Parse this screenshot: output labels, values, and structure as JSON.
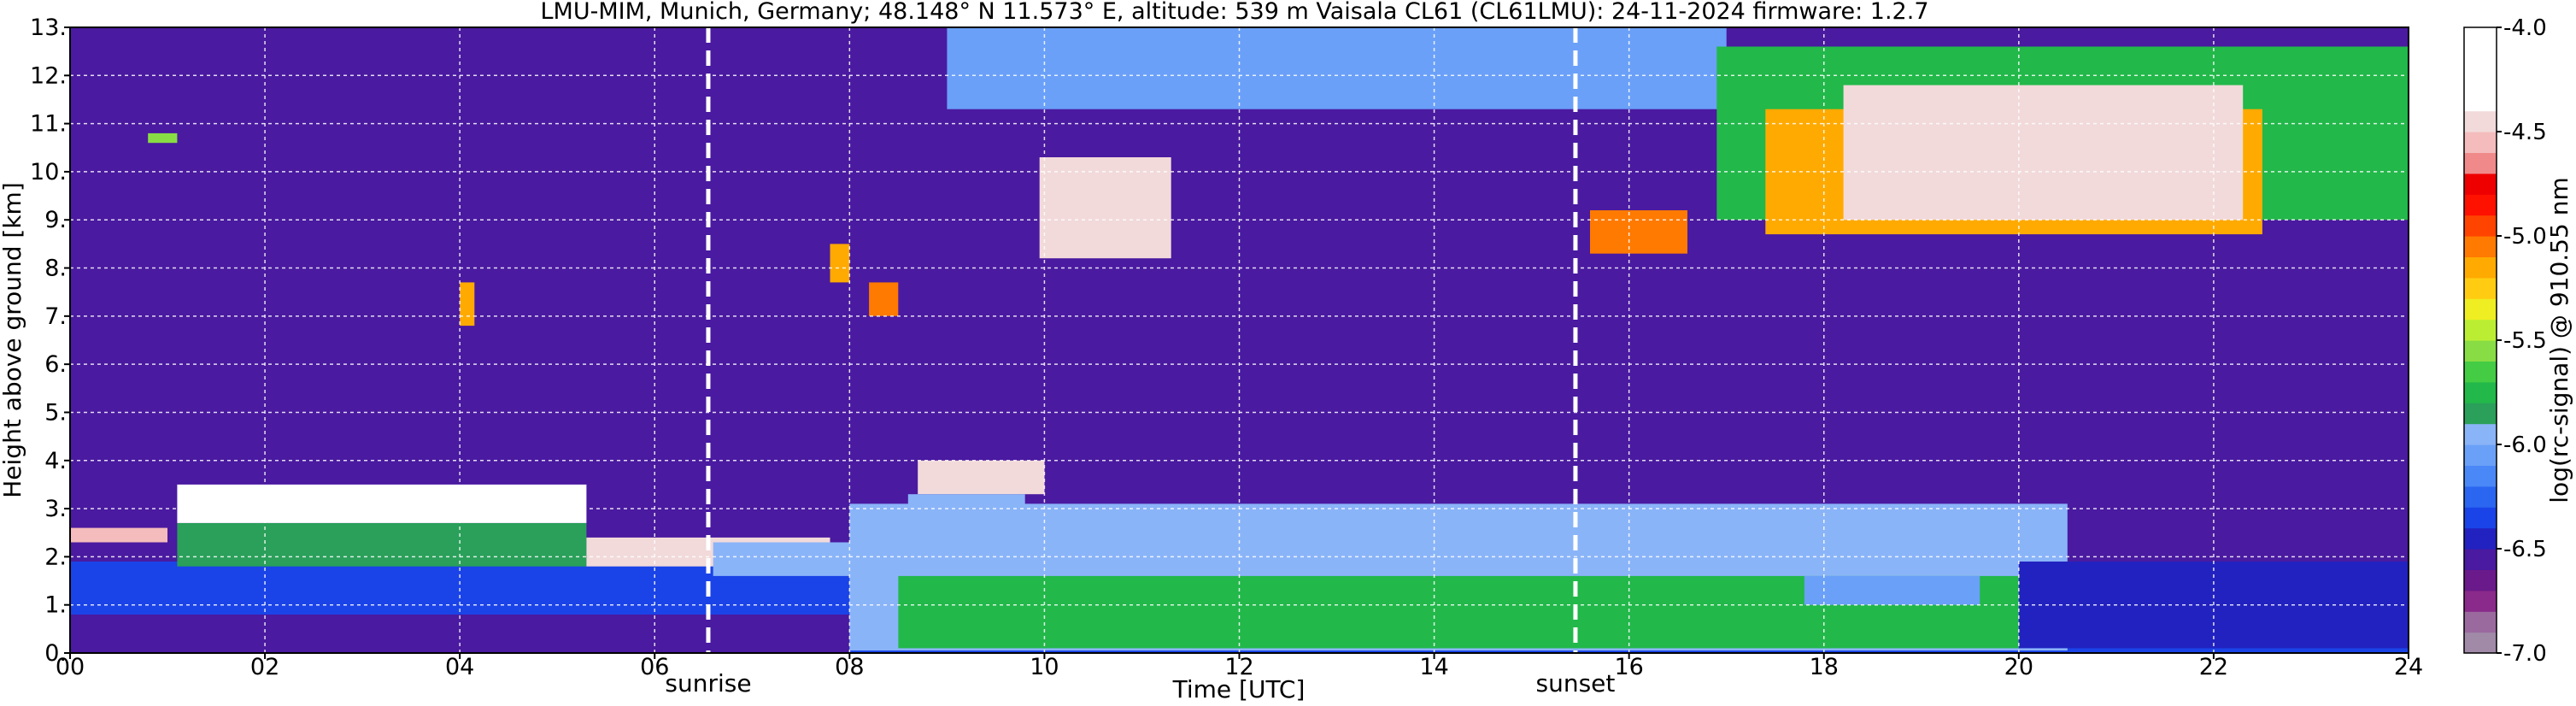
{
  "chart_data": {
    "type": "heatmap",
    "title": "LMU-MIM, Munich, Germany; 48.148° N 11.573° E, altitude: 539 m    Vaisala CL61 (CL61LMU): 24-11-2024    firmware: 1.2.7",
    "xlabel": "Time [UTC]",
    "ylabel": "Height above ground [km]",
    "xlim": [
      0,
      24
    ],
    "ylim": [
      0,
      13
    ],
    "xticks": [
      {
        "v": 0,
        "label": "00"
      },
      {
        "v": 2,
        "label": "02"
      },
      {
        "v": 4,
        "label": "04"
      },
      {
        "v": 6,
        "label": "06"
      },
      {
        "v": 8,
        "label": "08"
      },
      {
        "v": 10,
        "label": "10"
      },
      {
        "v": 12,
        "label": "12"
      },
      {
        "v": 14,
        "label": "14"
      },
      {
        "v": 16,
        "label": "16"
      },
      {
        "v": 18,
        "label": "18"
      },
      {
        "v": 20,
        "label": "20"
      },
      {
        "v": 22,
        "label": "22"
      },
      {
        "v": 24,
        "label": "24"
      }
    ],
    "yticks": [
      {
        "v": 0,
        "label": "0."
      },
      {
        "v": 1,
        "label": "1."
      },
      {
        "v": 2,
        "label": "2."
      },
      {
        "v": 3,
        "label": "3."
      },
      {
        "v": 4,
        "label": "4."
      },
      {
        "v": 5,
        "label": "5."
      },
      {
        "v": 6,
        "label": "6."
      },
      {
        "v": 7,
        "label": "7."
      },
      {
        "v": 8,
        "label": "8."
      },
      {
        "v": 9,
        "label": "9."
      },
      {
        "v": 10,
        "label": "10."
      },
      {
        "v": 11,
        "label": "11."
      },
      {
        "v": 12,
        "label": "12."
      },
      {
        "v": 13,
        "label": "13."
      }
    ],
    "grid": true,
    "vlines": [
      {
        "x": 6.55,
        "label": "sunrise"
      },
      {
        "x": 15.45,
        "label": "sunset"
      }
    ],
    "colorbar": {
      "label": "log(rc-signal) @ 910.55 nm",
      "range": [
        -7.0,
        -4.0
      ],
      "ticks": [
        {
          "v": -4.0,
          "label": "-4.0"
        },
        {
          "v": -4.5,
          "label": "-4.5"
        },
        {
          "v": -5.0,
          "label": "-5.0"
        },
        {
          "v": -5.5,
          "label": "-5.5"
        },
        {
          "v": -6.0,
          "label": "-6.0"
        },
        {
          "v": -6.5,
          "label": "-6.5"
        },
        {
          "v": -7.0,
          "label": "-7.0"
        }
      ],
      "colors": [
        "#a08aa8",
        "#9a6a9e",
        "#8a2a8a",
        "#6a1a8a",
        "#4a1aa0",
        "#2222c0",
        "#1a44e8",
        "#2a66f0",
        "#4a88f8",
        "#6aa0f8",
        "#8ab4f8",
        "#2aa05a",
        "#22b84a",
        "#44cc44",
        "#88dd44",
        "#bbee33",
        "#eeee22",
        "#ffcc11",
        "#ffaa00",
        "#ff7a00",
        "#ff4400",
        "#ff1100",
        "#ee0000",
        "#f08a8a",
        "#f4bcbc",
        "#f2dada",
        "#ffffff",
        "#ffffff",
        "#ffffff",
        "#ffffff"
      ]
    },
    "features": [
      {
        "t0": 0.0,
        "t1": 24.0,
        "z0": 0.0,
        "z1": 13.0,
        "value": -6.6
      },
      {
        "t0": 0.0,
        "t1": 24.0,
        "z0": 0.0,
        "z1": 1.9,
        "value": -6.35
      },
      {
        "t0": 0.0,
        "t1": 8.0,
        "z0": 0.0,
        "z1": 0.8,
        "value": -6.55
      },
      {
        "t0": 8.0,
        "t1": 20.5,
        "z0": 0.05,
        "z1": 3.1,
        "value": -5.9
      },
      {
        "t0": 8.5,
        "t1": 20.0,
        "z0": 0.1,
        "z1": 1.6,
        "value": -5.75
      },
      {
        "t0": 11.5,
        "t1": 16.0,
        "z0": 0.1,
        "z1": 0.9,
        "value": -5.7
      },
      {
        "t0": 17.8,
        "t1": 19.6,
        "z0": 1.0,
        "z1": 1.6,
        "value": -6.05
      },
      {
        "t0": 20.0,
        "t1": 24.0,
        "z0": 0.1,
        "z1": 1.9,
        "value": -6.45
      },
      {
        "t0": 0.0,
        "t1": 1.0,
        "z0": 2.3,
        "z1": 2.6,
        "value": -4.6
      },
      {
        "t0": 1.1,
        "t1": 5.3,
        "z0": 2.7,
        "z1": 3.5,
        "value": -4.3
      },
      {
        "t0": 1.1,
        "t1": 5.3,
        "z0": 1.8,
        "z1": 2.7,
        "value": -5.85
      },
      {
        "t0": 5.3,
        "t1": 7.8,
        "z0": 1.8,
        "z1": 2.4,
        "value": -4.4
      },
      {
        "t0": 6.6,
        "t1": 8.5,
        "z0": 1.6,
        "z1": 2.3,
        "value": -6.0
      },
      {
        "t0": 8.7,
        "t1": 10.0,
        "z0": 3.3,
        "z1": 4.0,
        "value": -4.4
      },
      {
        "t0": 8.6,
        "t1": 9.8,
        "z0": 2.0,
        "z1": 3.3,
        "value": -6.0
      },
      {
        "t0": 4.0,
        "t1": 4.15,
        "z0": 6.8,
        "z1": 7.7,
        "value": -5.2
      },
      {
        "t0": 8.2,
        "t1": 8.5,
        "z0": 7.0,
        "z1": 7.7,
        "value": -5.1
      },
      {
        "t0": 7.8,
        "t1": 8.0,
        "z0": 7.7,
        "z1": 8.5,
        "value": -5.2
      },
      {
        "t0": 9.95,
        "t1": 11.3,
        "z0": 8.2,
        "z1": 10.3,
        "value": -4.5
      },
      {
        "t0": 9.0,
        "t1": 17.0,
        "z0": 11.3,
        "z1": 13.0,
        "value": -6.1
      },
      {
        "t0": 15.6,
        "t1": 16.6,
        "z0": 8.3,
        "z1": 9.2,
        "value": -5.1
      },
      {
        "t0": 16.9,
        "t1": 24.0,
        "z0": 9.0,
        "z1": 12.6,
        "value": -5.8
      },
      {
        "t0": 17.4,
        "t1": 22.5,
        "z0": 8.7,
        "z1": 11.3,
        "value": -5.2
      },
      {
        "t0": 18.2,
        "t1": 22.3,
        "z0": 9.0,
        "z1": 11.8,
        "value": -4.4
      },
      {
        "t0": 0.8,
        "t1": 1.1,
        "z0": 10.6,
        "z1": 10.8,
        "value": -5.6
      }
    ]
  }
}
